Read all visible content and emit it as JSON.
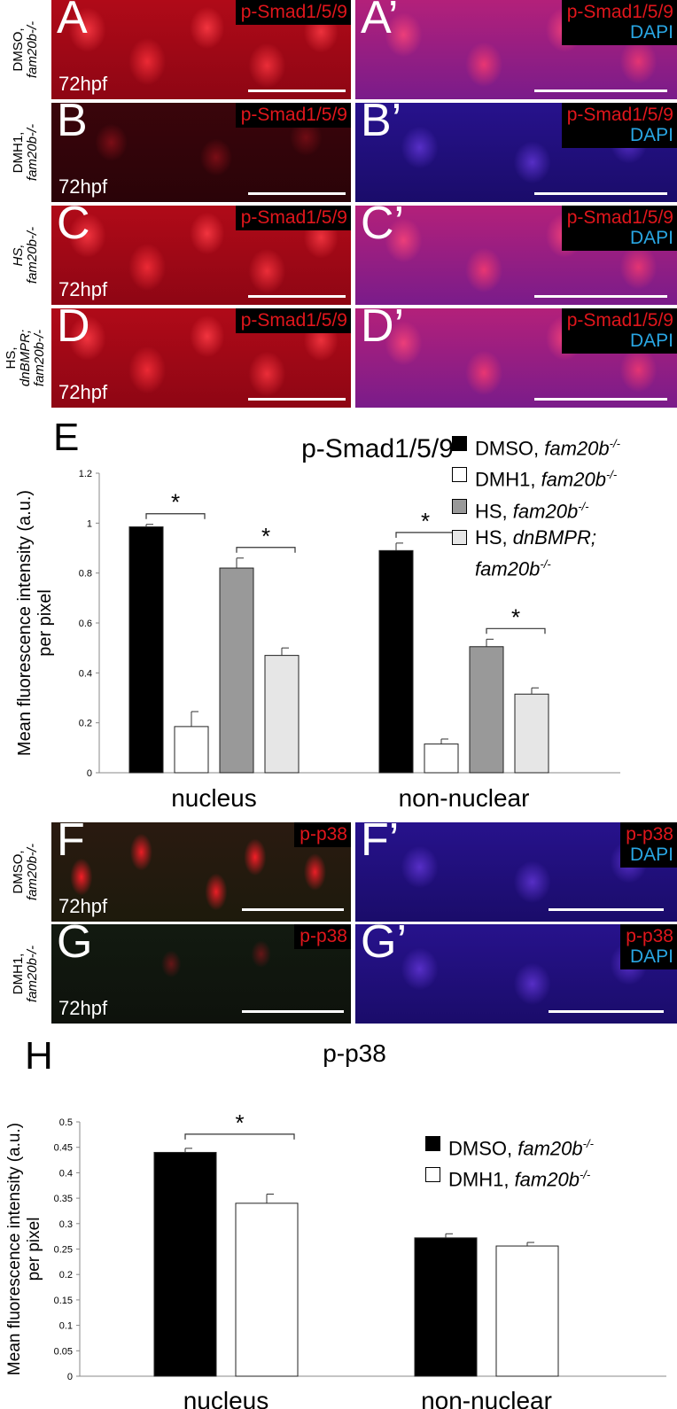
{
  "label_72hpf": "72hpf",
  "rows_smad": [
    {
      "cond1": "DMSO,",
      "cond2": "fam20b-/-",
      "cond2_italic": true,
      "left_letter": "A",
      "right_letter": "A’"
    },
    {
      "cond1": "DMH1,",
      "cond2": "fam20b-/-",
      "cond2_italic": true,
      "left_letter": "B",
      "right_letter": "B’"
    },
    {
      "cond1": "HS,",
      "cond2": "fam20b-/-",
      "cond1_italic": true,
      "left_letter": "C",
      "right_letter": "C’"
    },
    {
      "cond1": "HS,",
      "cond2": "dnBMPR;",
      "cond3": "fam20b-/-",
      "left_letter": "D",
      "right_letter": "D’"
    }
  ],
  "stain_smad": "p-Smad1/5/9",
  "stain_dapi": "DAPI",
  "rows_p38": [
    {
      "cond1": "DMSO,",
      "cond2": "fam20b-/-",
      "left_letter": "F",
      "right_letter": "F’"
    },
    {
      "cond1": "DMH1,",
      "cond2": "fam20b-/-",
      "left_letter": "G",
      "right_letter": "G’"
    }
  ],
  "stain_p38": "p-p38",
  "chart_data": [
    {
      "panel_letter": "E",
      "type": "bar",
      "title": "p-Smad1/5/9",
      "ylabel": "Mean fluorescence intensity (a.u.) per pixel",
      "ylim": [
        0,
        1.2
      ],
      "yticks": [
        "0",
        "0.2",
        "0.4",
        "0.6",
        "0.8",
        "1",
        "1.2"
      ],
      "categories": [
        "nucleus",
        "non-nuclear"
      ],
      "series": [
        {
          "name": "DMSO, fam20b-/-",
          "name_main": "DMSO, ",
          "name_italic": "fam20b",
          "name_sup": "-/-",
          "color": "#000000",
          "values": [
            0.985,
            0.89
          ],
          "errors": [
            0.01,
            0.03
          ]
        },
        {
          "name": "DMH1, fam20b-/-",
          "name_main": "DMH1, ",
          "name_italic": "fam20b",
          "name_sup": "-/-",
          "color": "#ffffff",
          "values": [
            0.185,
            0.115
          ],
          "errors": [
            0.06,
            0.02
          ]
        },
        {
          "name": "HS, fam20b-/-",
          "name_main": "HS, ",
          "name_italic": "fam20b",
          "name_sup": "-/-",
          "color": "#999999",
          "values": [
            0.82,
            0.505
          ],
          "errors": [
            0.04,
            0.03
          ]
        },
        {
          "name": "HS, dnBMPR; fam20b-/-",
          "name_main": "HS, ",
          "name_italic": "dnBMPR;",
          "name_line2": "fam20b",
          "name_sup": "-/-",
          "color": "#e6e6e6",
          "values": [
            0.47,
            0.315
          ],
          "errors": [
            0.03,
            0.025
          ]
        }
      ],
      "significance": [
        {
          "category": 0,
          "from": 0,
          "to": 1,
          "label": "*"
        },
        {
          "category": 0,
          "from": 2,
          "to": 3,
          "label": "*"
        },
        {
          "category": 1,
          "from": 0,
          "to": 1,
          "label": "*"
        },
        {
          "category": 1,
          "from": 2,
          "to": 3,
          "label": "*"
        }
      ],
      "grid": false,
      "legend_position": "top-right"
    },
    {
      "panel_letter": "H",
      "type": "bar",
      "title": "p-p38",
      "ylabel": "Mean fluorescence intensity (a.u.) per pixel",
      "ylim": [
        0,
        0.5
      ],
      "yticks": [
        "0",
        "0.05",
        "0.1",
        "0.15",
        "0.2",
        "0.25",
        "0.3",
        "0.35",
        "0.4",
        "0.45",
        "0.5"
      ],
      "categories": [
        "nucleus",
        "non-nuclear"
      ],
      "series": [
        {
          "name": "DMSO, fam20b-/-",
          "name_main": "DMSO, ",
          "name_italic": "fam20b",
          "name_sup": "-/-",
          "color": "#000000",
          "values": [
            0.44,
            0.272
          ],
          "errors": [
            0.008,
            0.008
          ]
        },
        {
          "name": "DMH1, fam20b-/-",
          "name_main": "DMH1, ",
          "name_italic": "fam20b",
          "name_sup": "-/-",
          "color": "#ffffff",
          "values": [
            0.34,
            0.256
          ],
          "errors": [
            0.018,
            0.007
          ]
        }
      ],
      "significance": [
        {
          "category": 0,
          "from": 0,
          "to": 1,
          "label": "*"
        }
      ],
      "grid": false,
      "legend_position": "right"
    }
  ]
}
